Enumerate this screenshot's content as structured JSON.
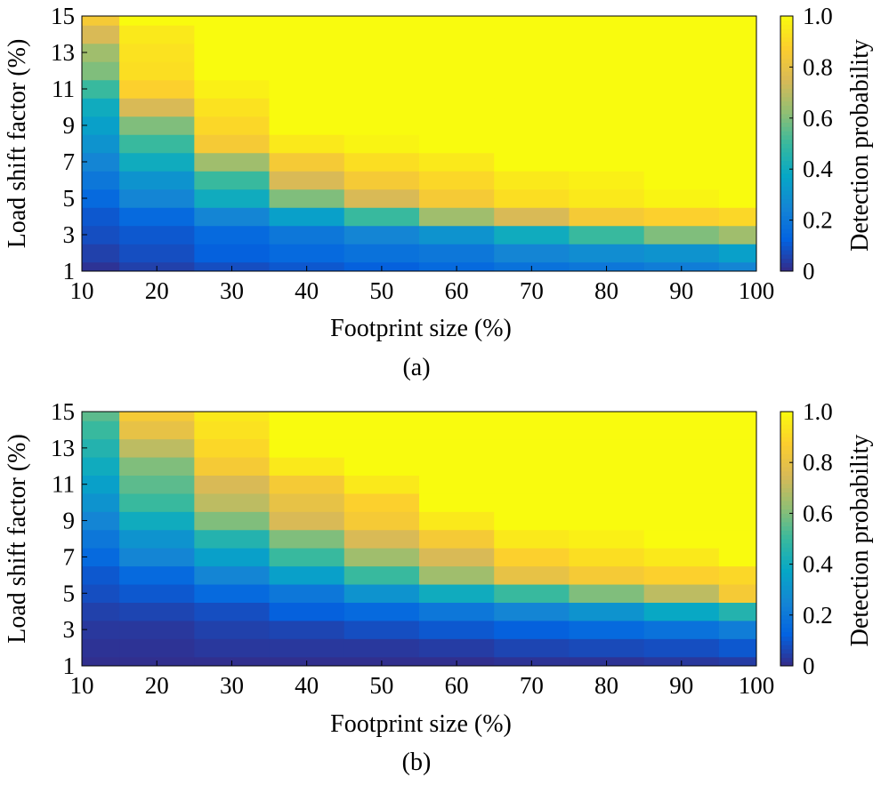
{
  "chart_data": [
    {
      "type": "heatmap",
      "panel_label": "(a)",
      "xlabel": "Footprint size (%)",
      "ylabel": "Load shift factor (%)",
      "x": [
        10,
        20,
        30,
        40,
        50,
        60,
        70,
        80,
        90,
        100
      ],
      "y": [
        1,
        2,
        3,
        4,
        5,
        6,
        7,
        8,
        9,
        10,
        11,
        12,
        13,
        14,
        15
      ],
      "xticks": [
        "10",
        "20",
        "30",
        "40",
        "50",
        "60",
        "70",
        "80",
        "90",
        "100"
      ],
      "yticks": [
        "1",
        "3",
        "5",
        "7",
        "9",
        "11",
        "13",
        "15"
      ],
      "xlim": [
        10,
        100
      ],
      "ylim": [
        1,
        15
      ],
      "colorbar": {
        "label": "Detection probability",
        "range": [
          0,
          1
        ],
        "ticks": [
          "0",
          "0.2",
          "0.4",
          "0.6",
          "0.8",
          "1.0"
        ]
      },
      "colormap": [
        "#352a87",
        "#0363e1",
        "#1485d4",
        "#06a7c6",
        "#38b99e",
        "#92bf73",
        "#d9ba56",
        "#fcce2e",
        "#f9fb0e"
      ],
      "values": [
        [
          0.02,
          0.05,
          0.08,
          0.1,
          0.12,
          0.15,
          0.18,
          0.2,
          0.22,
          0.25
        ],
        [
          0.05,
          0.08,
          0.12,
          0.15,
          0.18,
          0.2,
          0.25,
          0.28,
          0.3,
          0.35
        ],
        [
          0.08,
          0.1,
          0.15,
          0.2,
          0.25,
          0.3,
          0.4,
          0.5,
          0.6,
          0.65
        ],
        [
          0.1,
          0.15,
          0.25,
          0.35,
          0.5,
          0.65,
          0.75,
          0.85,
          0.88,
          0.9
        ],
        [
          0.15,
          0.25,
          0.4,
          0.6,
          0.75,
          0.85,
          0.92,
          0.95,
          0.98,
          1.0
        ],
        [
          0.2,
          0.3,
          0.5,
          0.75,
          0.85,
          0.9,
          0.95,
          0.97,
          1.0,
          1.0
        ],
        [
          0.25,
          0.4,
          0.65,
          0.85,
          0.92,
          0.95,
          1.0,
          1.0,
          1.0,
          1.0
        ],
        [
          0.3,
          0.5,
          0.85,
          0.95,
          0.98,
          1.0,
          1.0,
          1.0,
          1.0,
          1.0
        ],
        [
          0.35,
          0.6,
          0.9,
          1.0,
          1.0,
          1.0,
          1.0,
          1.0,
          1.0,
          1.0
        ],
        [
          0.4,
          0.75,
          0.93,
          1.0,
          1.0,
          1.0,
          1.0,
          1.0,
          1.0,
          1.0
        ],
        [
          0.5,
          0.88,
          0.97,
          1.0,
          1.0,
          1.0,
          1.0,
          1.0,
          1.0,
          1.0
        ],
        [
          0.6,
          0.92,
          1.0,
          1.0,
          1.0,
          1.0,
          1.0,
          1.0,
          1.0,
          1.0
        ],
        [
          0.65,
          0.93,
          1.0,
          1.0,
          1.0,
          1.0,
          1.0,
          1.0,
          1.0,
          1.0
        ],
        [
          0.75,
          0.95,
          1.0,
          1.0,
          1.0,
          1.0,
          1.0,
          1.0,
          1.0,
          1.0
        ],
        [
          0.85,
          1.0,
          1.0,
          1.0,
          1.0,
          1.0,
          1.0,
          1.0,
          1.0,
          1.0
        ]
      ]
    },
    {
      "type": "heatmap",
      "panel_label": "(b)",
      "xlabel": "Footprint size (%)",
      "ylabel": "Load shift factor (%)",
      "x": [
        10,
        20,
        30,
        40,
        50,
        60,
        70,
        80,
        90,
        100
      ],
      "y": [
        1,
        2,
        3,
        4,
        5,
        6,
        7,
        8,
        9,
        10,
        11,
        12,
        13,
        14,
        15
      ],
      "xticks": [
        "10",
        "20",
        "30",
        "40",
        "50",
        "60",
        "70",
        "80",
        "90",
        "100"
      ],
      "yticks": [
        "1",
        "3",
        "5",
        "7",
        "9",
        "11",
        "13",
        "15"
      ],
      "xlim": [
        10,
        100
      ],
      "ylim": [
        1,
        15
      ],
      "colorbar": {
        "label": "Detection probability",
        "range": [
          0,
          1
        ],
        "ticks": [
          "0",
          "0.2",
          "0.4",
          "0.6",
          "0.8",
          "1.0"
        ]
      },
      "colormap": [
        "#352a87",
        "#0363e1",
        "#1485d4",
        "#06a7c6",
        "#38b99e",
        "#92bf73",
        "#d9ba56",
        "#fcce2e",
        "#f9fb0e"
      ],
      "values": [
        [
          0.01,
          0.01,
          0.01,
          0.01,
          0.01,
          0.01,
          0.02,
          0.02,
          0.03,
          0.04
        ],
        [
          0.02,
          0.02,
          0.03,
          0.03,
          0.03,
          0.04,
          0.06,
          0.07,
          0.08,
          0.1
        ],
        [
          0.03,
          0.03,
          0.05,
          0.06,
          0.08,
          0.1,
          0.12,
          0.15,
          0.18,
          0.22
        ],
        [
          0.05,
          0.06,
          0.08,
          0.12,
          0.15,
          0.2,
          0.25,
          0.3,
          0.38,
          0.45
        ],
        [
          0.08,
          0.1,
          0.15,
          0.2,
          0.3,
          0.4,
          0.5,
          0.6,
          0.7,
          0.85
        ],
        [
          0.1,
          0.15,
          0.25,
          0.35,
          0.5,
          0.65,
          0.8,
          0.85,
          0.88,
          0.9
        ],
        [
          0.15,
          0.25,
          0.35,
          0.5,
          0.65,
          0.75,
          0.88,
          0.92,
          0.95,
          1.0
        ],
        [
          0.2,
          0.3,
          0.45,
          0.6,
          0.75,
          0.85,
          0.95,
          0.97,
          1.0,
          1.0
        ],
        [
          0.25,
          0.4,
          0.6,
          0.75,
          0.85,
          0.95,
          1.0,
          1.0,
          1.0,
          1.0
        ],
        [
          0.3,
          0.5,
          0.7,
          0.8,
          0.88,
          1.0,
          1.0,
          1.0,
          1.0,
          1.0
        ],
        [
          0.35,
          0.55,
          0.75,
          0.85,
          0.95,
          1.0,
          1.0,
          1.0,
          1.0,
          1.0
        ],
        [
          0.4,
          0.6,
          0.85,
          0.95,
          1.0,
          1.0,
          1.0,
          1.0,
          1.0,
          1.0
        ],
        [
          0.45,
          0.7,
          0.9,
          1.0,
          1.0,
          1.0,
          1.0,
          1.0,
          1.0,
          1.0
        ],
        [
          0.5,
          0.8,
          0.93,
          1.0,
          1.0,
          1.0,
          1.0,
          1.0,
          1.0,
          1.0
        ],
        [
          0.55,
          0.85,
          0.95,
          1.0,
          1.0,
          1.0,
          1.0,
          1.0,
          1.0,
          1.0
        ]
      ]
    }
  ]
}
